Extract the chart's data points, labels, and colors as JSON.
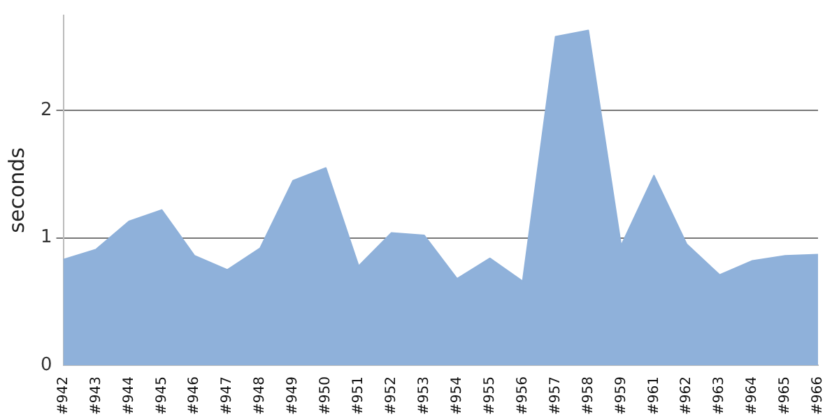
{
  "chart_data": {
    "type": "area",
    "ylabel": "seconds",
    "categories": [
      "#942",
      "#943",
      "#944",
      "#945",
      "#946",
      "#947",
      "#948",
      "#949",
      "#950",
      "#951",
      "#952",
      "#953",
      "#954",
      "#955",
      "#956",
      "#957",
      "#958",
      "#959",
      "#961",
      "#962",
      "#963",
      "#964",
      "#965",
      "#966"
    ],
    "series": [
      {
        "color": "#8fb1da",
        "values": [
          0.83,
          0.91,
          1.13,
          1.22,
          0.86,
          0.75,
          0.92,
          1.45,
          1.55,
          0.78,
          1.04,
          1.02,
          0.68,
          0.84,
          0.66,
          2.58,
          2.63,
          0.94,
          1.49,
          0.95,
          0.71,
          0.82,
          0.86,
          0.87
        ]
      }
    ],
    "ylim": [
      0,
      2.75
    ],
    "yticks": [
      0,
      1,
      2
    ],
    "grid": "y",
    "legend": false
  }
}
